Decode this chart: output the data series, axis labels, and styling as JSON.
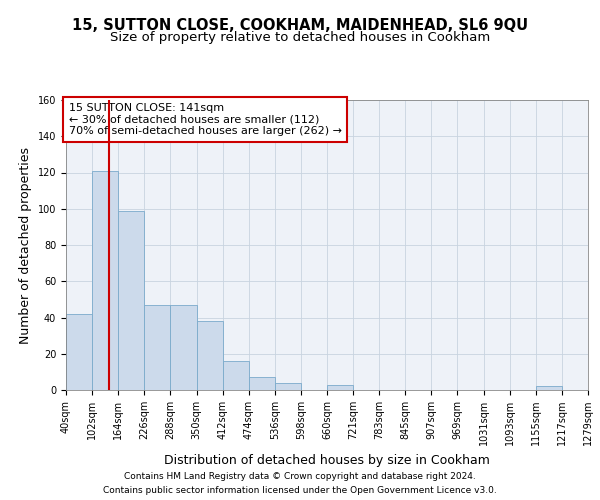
{
  "title1": "15, SUTTON CLOSE, COOKHAM, MAIDENHEAD, SL6 9QU",
  "title2": "Size of property relative to detached houses in Cookham",
  "xlabel": "Distribution of detached houses by size in Cookham",
  "ylabel": "Number of detached properties",
  "footer1": "Contains HM Land Registry data © Crown copyright and database right 2024.",
  "footer2": "Contains public sector information licensed under the Open Government Licence v3.0.",
  "annotation_line1": "15 SUTTON CLOSE: 141sqm",
  "annotation_line2": "← 30% of detached houses are smaller (112)",
  "annotation_line3": "70% of semi-detached houses are larger (262) →",
  "bar_values": [
    42,
    121,
    99,
    47,
    47,
    38,
    16,
    7,
    4,
    0,
    3,
    0,
    0,
    0,
    0,
    0,
    0,
    0,
    2,
    0
  ],
  "bin_edges": [
    40,
    102,
    164,
    226,
    288,
    350,
    412,
    474,
    536,
    598,
    660,
    721,
    783,
    845,
    907,
    969,
    1031,
    1093,
    1155,
    1217,
    1279
  ],
  "tick_labels": [
    "40sqm",
    "102sqm",
    "164sqm",
    "226sqm",
    "288sqm",
    "350sqm",
    "412sqm",
    "474sqm",
    "536sqm",
    "598sqm",
    "660sqm",
    "721sqm",
    "783sqm",
    "845sqm",
    "907sqm",
    "969sqm",
    "1031sqm",
    "1093sqm",
    "1155sqm",
    "1217sqm",
    "1279sqm"
  ],
  "bar_color": "#ccdaeb",
  "bar_edge_color": "#7aaacb",
  "vline_x": 141,
  "vline_color": "#cc0000",
  "annotation_box_color": "#cc0000",
  "ylim": [
    0,
    160
  ],
  "yticks": [
    0,
    20,
    40,
    60,
    80,
    100,
    120,
    140,
    160
  ],
  "grid_color": "#c8d4e0",
  "bg_color": "#eef2f8",
  "title_fontsize": 10.5,
  "subtitle_fontsize": 9.5,
  "axis_label_fontsize": 9,
  "tick_fontsize": 7,
  "annotation_fontsize": 8,
  "footer_fontsize": 6.5
}
